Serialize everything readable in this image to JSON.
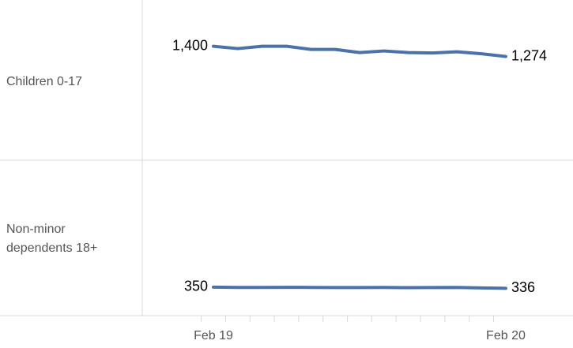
{
  "chart_data": {
    "type": "line",
    "categories": [
      "Feb 19",
      null,
      null,
      null,
      null,
      null,
      null,
      null,
      null,
      null,
      null,
      null,
      "Feb 20"
    ],
    "series": [
      {
        "name": "Children 0-17",
        "color": "#4a72a8",
        "values": [
          1400,
          1371,
          1400,
          1400,
          1361,
          1361,
          1322,
          1342,
          1322,
          1317,
          1332,
          1307,
          1274
        ],
        "value_labels": [
          "1,400",
          null,
          null,
          null,
          null,
          null,
          null,
          null,
          null,
          null,
          null,
          null,
          "1,274"
        ]
      },
      {
        "name": "Non-minor dependents 18+",
        "color": "#4a72a8",
        "values": [
          350,
          347,
          347,
          348,
          347,
          345,
          345,
          346,
          344,
          345,
          347,
          340,
          336
        ],
        "value_labels": [
          "350",
          null,
          null,
          null,
          null,
          null,
          null,
          null,
          null,
          null,
          null,
          null,
          "336"
        ]
      }
    ],
    "ylim": [
      0,
      1900
    ]
  }
}
